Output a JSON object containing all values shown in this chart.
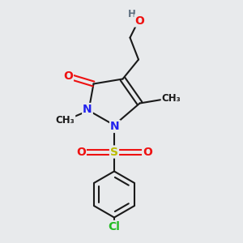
{
  "background_color": "#e8eaec",
  "bond_color": "#1a1a1a",
  "bond_width": 1.5,
  "atom_colors": {
    "O": "#ee1111",
    "N": "#2222ee",
    "S": "#bbbb00",
    "Cl": "#22bb22",
    "H": "#607080",
    "C": "#1a1a1a"
  },
  "font_size_atom": 10,
  "font_size_small": 8.5
}
